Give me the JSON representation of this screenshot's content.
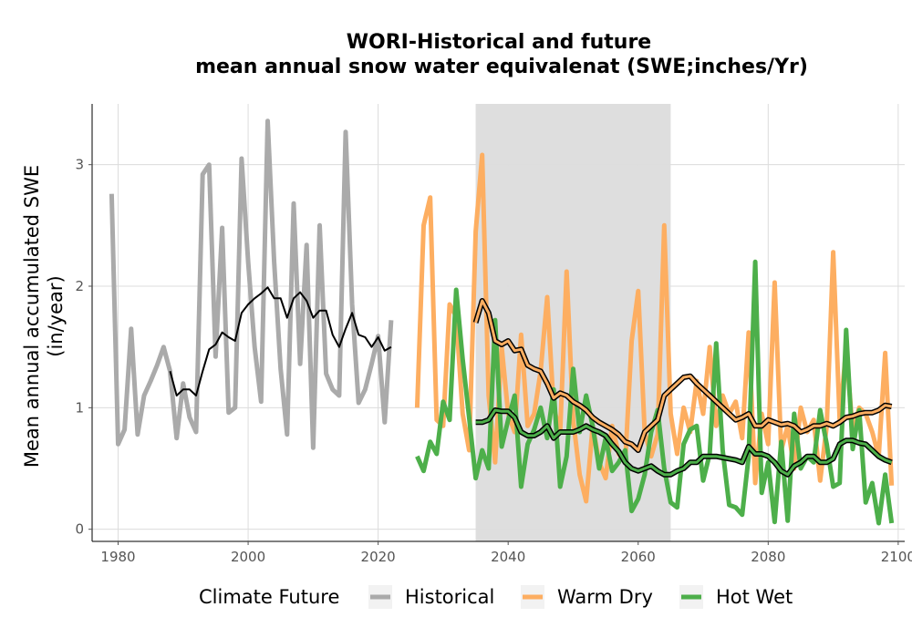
{
  "chart_data": {
    "type": "line",
    "title": "WORI-Historical and future",
    "subtitle": "mean annual snow water equivalenat (SWE;inches/Yr)",
    "xlabel": "",
    "ylabel": "Mean annual accumulated SWE",
    "ylabel_units": "(in/year)",
    "xlim": [
      1976,
      2101
    ],
    "ylim": [
      -0.1,
      3.5
    ],
    "x_ticks": [
      1980,
      2000,
      2020,
      2040,
      2060,
      2080,
      2100
    ],
    "y_ticks": [
      0,
      1,
      2,
      3
    ],
    "grid": true,
    "legend": {
      "title": "Climate Future",
      "placement": "bottom",
      "entries": [
        "Historical",
        "Warm Dry",
        "Hot Wet"
      ]
    },
    "shaded_period": [
      2035,
      2065
    ],
    "colors": {
      "Historical": "#aaaaaa",
      "Warm Dry": "#fdae61",
      "Hot Wet": "#4daf4a",
      "shaded": "#dcdcdc",
      "smooth": "#000000"
    },
    "series": [
      {
        "name": "Historical",
        "x": [
          1979,
          1980,
          1981,
          1982,
          1983,
          1984,
          1985,
          1986,
          1987,
          1988,
          1989,
          1990,
          1991,
          1992,
          1993,
          1994,
          1995,
          1996,
          1997,
          1998,
          1999,
          2000,
          2001,
          2002,
          2003,
          2004,
          2005,
          2006,
          2007,
          2008,
          2009,
          2010,
          2011,
          2012,
          2013,
          2014,
          2015,
          2016,
          2017,
          2018,
          2019,
          2020,
          2021,
          2022
        ],
        "values": [
          2.76,
          0.7,
          0.82,
          1.65,
          0.78,
          1.1,
          1.22,
          1.35,
          1.5,
          1.3,
          0.75,
          1.2,
          0.92,
          0.8,
          2.92,
          3.0,
          1.42,
          2.48,
          0.96,
          1.0,
          3.05,
          2.2,
          1.5,
          1.05,
          3.36,
          2.2,
          1.32,
          0.78,
          2.68,
          1.36,
          2.34,
          0.67,
          2.5,
          1.28,
          1.15,
          1.1,
          3.27,
          1.85,
          1.04,
          1.15,
          1.36,
          1.59,
          0.88,
          1.72
        ]
      },
      {
        "name": "Warm Dry",
        "x": [
          2026,
          2027,
          2028,
          2029,
          2030,
          2031,
          2032,
          2033,
          2034,
          2035,
          2036,
          2037,
          2038,
          2039,
          2040,
          2041,
          2042,
          2043,
          2044,
          2045,
          2046,
          2047,
          2048,
          2049,
          2050,
          2051,
          2052,
          2053,
          2054,
          2055,
          2056,
          2057,
          2058,
          2059,
          2060,
          2061,
          2062,
          2063,
          2064,
          2065,
          2066,
          2067,
          2068,
          2069,
          2070,
          2071,
          2072,
          2073,
          2074,
          2075,
          2076,
          2077,
          2078,
          2079,
          2080,
          2081,
          2082,
          2083,
          2084,
          2085,
          2086,
          2087,
          2088,
          2089,
          2090,
          2091,
          2092,
          2093,
          2094,
          2095,
          2096,
          2097,
          2098,
          2099
        ],
        "values": [
          1.0,
          2.5,
          2.73,
          0.9,
          0.85,
          1.85,
          1.75,
          0.95,
          0.65,
          2.45,
          3.08,
          1.1,
          0.55,
          1.5,
          0.95,
          0.8,
          1.6,
          0.85,
          0.95,
          1.3,
          1.91,
          1.0,
          0.8,
          2.12,
          0.9,
          0.45,
          0.23,
          0.85,
          0.55,
          0.42,
          0.85,
          0.62,
          0.55,
          1.55,
          1.96,
          0.8,
          0.6,
          0.78,
          2.5,
          0.95,
          0.62,
          1.0,
          0.8,
          1.22,
          0.95,
          1.5,
          0.85,
          1.1,
          0.95,
          1.05,
          0.75,
          1.62,
          0.38,
          0.95,
          0.7,
          2.03,
          0.65,
          0.85,
          0.5,
          1.0,
          0.8,
          0.9,
          0.4,
          0.85,
          2.28,
          0.9,
          1.49,
          0.8,
          1.0,
          0.95,
          0.8,
          0.6,
          1.45,
          0.36
        ]
      },
      {
        "name": "Hot Wet",
        "x": [
          2026,
          2027,
          2028,
          2029,
          2030,
          2031,
          2032,
          2033,
          2034,
          2035,
          2036,
          2037,
          2038,
          2039,
          2040,
          2041,
          2042,
          2043,
          2044,
          2045,
          2046,
          2047,
          2048,
          2049,
          2050,
          2051,
          2052,
          2053,
          2054,
          2055,
          2056,
          2057,
          2058,
          2059,
          2060,
          2061,
          2062,
          2063,
          2064,
          2065,
          2066,
          2067,
          2068,
          2069,
          2070,
          2071,
          2072,
          2073,
          2074,
          2075,
          2076,
          2077,
          2078,
          2079,
          2080,
          2081,
          2082,
          2083,
          2084,
          2085,
          2086,
          2087,
          2088,
          2089,
          2090,
          2091,
          2092,
          2093,
          2094,
          2095,
          2096,
          2097,
          2098,
          2099
        ],
        "values": [
          0.6,
          0.48,
          0.72,
          0.62,
          1.05,
          0.9,
          1.97,
          1.4,
          0.92,
          0.42,
          0.65,
          0.5,
          1.72,
          0.68,
          0.9,
          1.1,
          0.35,
          0.7,
          0.82,
          1.0,
          0.75,
          1.15,
          0.35,
          0.6,
          1.32,
          0.8,
          1.1,
          0.85,
          0.5,
          0.75,
          0.48,
          0.55,
          0.65,
          0.15,
          0.25,
          0.45,
          0.8,
          0.98,
          0.5,
          0.22,
          0.18,
          0.7,
          0.82,
          0.85,
          0.4,
          0.62,
          1.53,
          0.65,
          0.2,
          0.18,
          0.12,
          0.6,
          2.2,
          0.3,
          0.55,
          0.06,
          0.72,
          0.07,
          0.95,
          0.5,
          0.6,
          0.55,
          0.98,
          0.7,
          0.35,
          0.38,
          1.64,
          0.66,
          0.98,
          0.22,
          0.38,
          0.05,
          0.45,
          0.05
        ]
      },
      {
        "name": "Historical smoothed",
        "x": [
          1988,
          1989,
          1990,
          1991,
          1992,
          1993,
          1994,
          1995,
          1996,
          1997,
          1998,
          1999,
          2000,
          2001,
          2002,
          2003,
          2004,
          2005,
          2006,
          2007,
          2008,
          2009,
          2010,
          2011,
          2012,
          2013,
          2014,
          2015,
          2016,
          2017,
          2018,
          2019,
          2020,
          2021,
          2022
        ],
        "values": [
          1.3,
          1.1,
          1.15,
          1.15,
          1.1,
          1.3,
          1.48,
          1.52,
          1.62,
          1.58,
          1.55,
          1.78,
          1.85,
          1.9,
          1.94,
          1.99,
          1.9,
          1.9,
          1.74,
          1.9,
          1.95,
          1.88,
          1.74,
          1.8,
          1.8,
          1.6,
          1.5,
          1.65,
          1.78,
          1.6,
          1.58,
          1.5,
          1.58,
          1.47,
          1.5
        ]
      },
      {
        "name": "Warm Dry smoothed",
        "x": [
          2035,
          2036,
          2037,
          2038,
          2039,
          2040,
          2041,
          2042,
          2043,
          2044,
          2045,
          2046,
          2047,
          2048,
          2049,
          2050,
          2051,
          2052,
          2053,
          2054,
          2055,
          2056,
          2057,
          2058,
          2059,
          2060,
          2061,
          2062,
          2063,
          2064,
          2065,
          2066,
          2067,
          2068,
          2069,
          2070,
          2071,
          2072,
          2073,
          2074,
          2075,
          2076,
          2077,
          2078,
          2079,
          2080,
          2081,
          2082,
          2083,
          2084,
          2085,
          2086,
          2087,
          2088,
          2089,
          2090,
          2091,
          2092,
          2093,
          2094,
          2095,
          2096,
          2097,
          2098,
          2099
        ],
        "values": [
          1.7,
          1.88,
          1.78,
          1.55,
          1.52,
          1.55,
          1.47,
          1.48,
          1.35,
          1.32,
          1.3,
          1.2,
          1.08,
          1.12,
          1.1,
          1.05,
          1.02,
          0.98,
          0.92,
          0.88,
          0.85,
          0.82,
          0.78,
          0.72,
          0.7,
          0.65,
          0.8,
          0.85,
          0.9,
          1.1,
          1.15,
          1.2,
          1.25,
          1.26,
          1.2,
          1.15,
          1.1,
          1.05,
          1.0,
          0.95,
          0.9,
          0.92,
          0.95,
          0.85,
          0.85,
          0.9,
          0.88,
          0.86,
          0.87,
          0.85,
          0.8,
          0.82,
          0.85,
          0.85,
          0.87,
          0.85,
          0.88,
          0.92,
          0.93,
          0.95,
          0.96,
          0.96,
          0.98,
          1.02,
          1.01
        ]
      },
      {
        "name": "Hot Wet smoothed",
        "x": [
          2035,
          2036,
          2037,
          2038,
          2039,
          2040,
          2041,
          2042,
          2043,
          2044,
          2045,
          2046,
          2047,
          2048,
          2049,
          2050,
          2051,
          2052,
          2053,
          2054,
          2055,
          2056,
          2057,
          2058,
          2059,
          2060,
          2061,
          2062,
          2063,
          2064,
          2065,
          2066,
          2067,
          2068,
          2069,
          2070,
          2071,
          2072,
          2073,
          2074,
          2075,
          2076,
          2077,
          2078,
          2079,
          2080,
          2081,
          2082,
          2083,
          2084,
          2085,
          2086,
          2087,
          2088,
          2089,
          2090,
          2091,
          2092,
          2093,
          2094,
          2095,
          2096,
          2097,
          2098,
          2099
        ],
        "values": [
          0.88,
          0.88,
          0.9,
          0.98,
          0.97,
          0.97,
          0.92,
          0.8,
          0.77,
          0.77,
          0.8,
          0.85,
          0.75,
          0.8,
          0.8,
          0.8,
          0.82,
          0.85,
          0.82,
          0.8,
          0.77,
          0.7,
          0.64,
          0.55,
          0.5,
          0.48,
          0.5,
          0.52,
          0.48,
          0.45,
          0.45,
          0.48,
          0.5,
          0.55,
          0.55,
          0.6,
          0.6,
          0.6,
          0.59,
          0.58,
          0.57,
          0.55,
          0.68,
          0.62,
          0.62,
          0.6,
          0.55,
          0.48,
          0.45,
          0.52,
          0.55,
          0.6,
          0.6,
          0.55,
          0.55,
          0.58,
          0.7,
          0.73,
          0.73,
          0.71,
          0.7,
          0.65,
          0.6,
          0.57,
          0.55
        ]
      }
    ]
  }
}
